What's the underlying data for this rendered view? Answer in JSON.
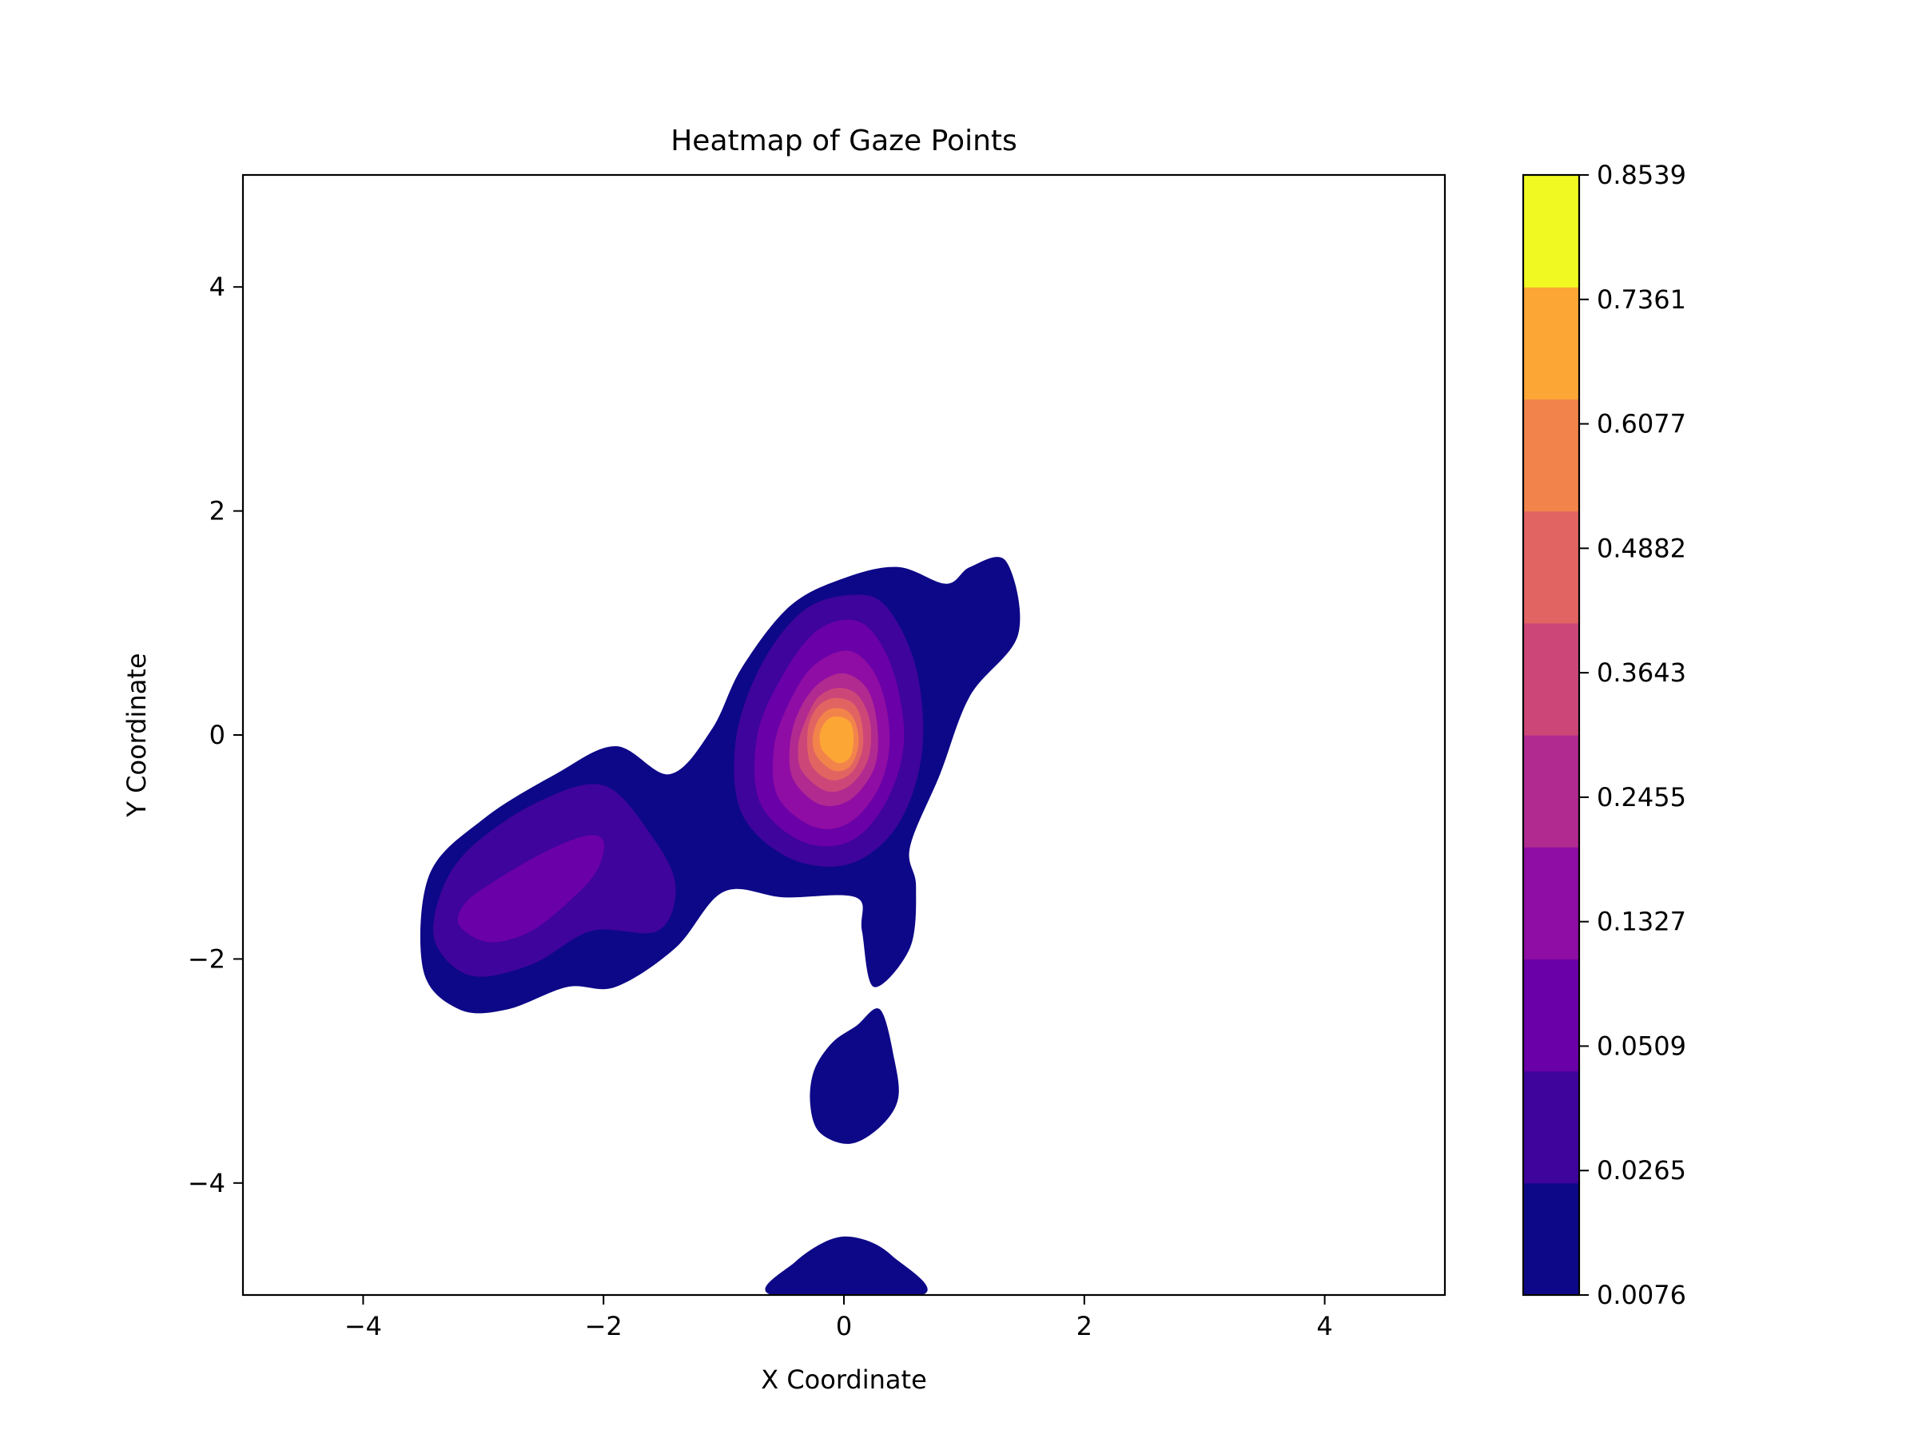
{
  "chart_data": {
    "type": "contour",
    "title": "Heatmap of Gaze Points",
    "xlabel": "X Coordinate",
    "ylabel": "Y Coordinate",
    "xlim": [
      -5,
      5
    ],
    "ylim": [
      -5,
      5
    ],
    "x_ticks": [
      -4,
      -2,
      0,
      2,
      4
    ],
    "y_ticks": [
      -4,
      -2,
      0,
      2,
      4
    ],
    "x_tick_labels": [
      "−4",
      "−2",
      "0",
      "2",
      "4"
    ],
    "y_tick_labels": [
      "−4",
      "−2",
      "0",
      "2",
      "4"
    ],
    "grid": false,
    "colormap": "plasma",
    "colorbar": {
      "levels": [
        0.0076,
        0.0265,
        0.0509,
        0.1327,
        0.2455,
        0.3643,
        0.4882,
        0.6077,
        0.7361,
        0.8539
      ],
      "labels": [
        "0.0076",
        "0.0265",
        "0.0509",
        "0.1327",
        "0.2455",
        "0.3643",
        "0.4882",
        "0.6077",
        "0.7361",
        "0.8539"
      ],
      "colors": [
        "#0d0887",
        "#3e049c",
        "#6a00a8",
        "#8f0da4",
        "#b12a90",
        "#cc4778",
        "#e16462",
        "#f2844b",
        "#fca636",
        "#f0f921"
      ]
    },
    "regions": [
      {
        "name": "main-blob",
        "level_index": 0,
        "outline": [
          [
            -3.5,
            -2.1
          ],
          [
            -3.2,
            -2.45
          ],
          [
            -2.8,
            -2.45
          ],
          [
            -2.3,
            -2.25
          ],
          [
            -1.9,
            -2.25
          ],
          [
            -1.4,
            -1.9
          ],
          [
            -1.0,
            -1.4
          ],
          [
            -0.5,
            -1.45
          ],
          [
            0.1,
            -1.45
          ],
          [
            0.15,
            -1.75
          ],
          [
            0.25,
            -2.25
          ],
          [
            0.55,
            -1.9
          ],
          [
            0.6,
            -1.35
          ],
          [
            0.55,
            -1.0
          ],
          [
            0.8,
            -0.35
          ],
          [
            1.05,
            0.35
          ],
          [
            1.45,
            0.9
          ],
          [
            1.35,
            1.55
          ],
          [
            1.05,
            1.5
          ],
          [
            0.85,
            1.35
          ],
          [
            0.45,
            1.5
          ],
          [
            0.0,
            1.4
          ],
          [
            -0.45,
            1.15
          ],
          [
            -0.85,
            0.6
          ],
          [
            -1.1,
            0.05
          ],
          [
            -1.45,
            -0.35
          ],
          [
            -1.9,
            -0.1
          ],
          [
            -2.4,
            -0.35
          ],
          [
            -3.0,
            -0.75
          ],
          [
            -3.45,
            -1.25
          ]
        ]
      },
      {
        "name": "upper-lobe-contour-1",
        "level_index": 1,
        "outline": [
          [
            -0.85,
            -0.7
          ],
          [
            -0.45,
            -1.1
          ],
          [
            0.05,
            -1.15
          ],
          [
            0.45,
            -0.8
          ],
          [
            0.65,
            -0.15
          ],
          [
            0.6,
            0.6
          ],
          [
            0.35,
            1.15
          ],
          [
            0.05,
            1.25
          ],
          [
            -0.35,
            1.1
          ],
          [
            -0.7,
            0.6
          ],
          [
            -0.9,
            -0.05
          ]
        ]
      },
      {
        "name": "upper-lobe-contour-2",
        "level_index": 2,
        "outline": [
          [
            -0.7,
            -0.6
          ],
          [
            -0.35,
            -0.95
          ],
          [
            0.05,
            -0.95
          ],
          [
            0.35,
            -0.6
          ],
          [
            0.5,
            -0.05
          ],
          [
            0.4,
            0.6
          ],
          [
            0.15,
            1.0
          ],
          [
            -0.2,
            0.95
          ],
          [
            -0.5,
            0.55
          ],
          [
            -0.72,
            0.0
          ]
        ]
      },
      {
        "name": "upper-lobe-contour-3",
        "level_index": 3,
        "outline": [
          [
            -0.55,
            -0.55
          ],
          [
            -0.25,
            -0.82
          ],
          [
            0.05,
            -0.78
          ],
          [
            0.3,
            -0.45
          ],
          [
            0.38,
            0.0
          ],
          [
            0.28,
            0.5
          ],
          [
            0.05,
            0.75
          ],
          [
            -0.25,
            0.62
          ],
          [
            -0.45,
            0.3
          ],
          [
            -0.58,
            -0.1
          ]
        ]
      },
      {
        "name": "upper-lobe-contour-4",
        "level_index": 4,
        "outline": [
          [
            -0.42,
            -0.4
          ],
          [
            -0.2,
            -0.62
          ],
          [
            0.05,
            -0.58
          ],
          [
            0.25,
            -0.3
          ],
          [
            0.28,
            0.05
          ],
          [
            0.2,
            0.4
          ],
          [
            0.0,
            0.55
          ],
          [
            -0.22,
            0.45
          ],
          [
            -0.38,
            0.2
          ],
          [
            -0.45,
            -0.1
          ]
        ]
      },
      {
        "name": "upper-lobe-contour-5",
        "level_index": 5,
        "outline": [
          [
            -0.35,
            -0.32
          ],
          [
            -0.15,
            -0.5
          ],
          [
            0.05,
            -0.45
          ],
          [
            0.2,
            -0.22
          ],
          [
            0.22,
            0.1
          ],
          [
            0.12,
            0.35
          ],
          [
            -0.05,
            0.42
          ],
          [
            -0.22,
            0.33
          ],
          [
            -0.33,
            0.1
          ],
          [
            -0.38,
            -0.1
          ]
        ]
      },
      {
        "name": "upper-lobe-contour-6",
        "level_index": 6,
        "outline": [
          [
            -0.28,
            -0.25
          ],
          [
            -0.12,
            -0.4
          ],
          [
            0.05,
            -0.35
          ],
          [
            0.15,
            -0.15
          ],
          [
            0.15,
            0.1
          ],
          [
            0.08,
            0.28
          ],
          [
            -0.08,
            0.33
          ],
          [
            -0.22,
            0.25
          ],
          [
            -0.3,
            0.05
          ]
        ]
      },
      {
        "name": "upper-lobe-contour-7",
        "level_index": 7,
        "outline": [
          [
            -0.22,
            -0.2
          ],
          [
            -0.08,
            -0.32
          ],
          [
            0.05,
            -0.28
          ],
          [
            0.12,
            -0.1
          ],
          [
            0.1,
            0.1
          ],
          [
            0.02,
            0.22
          ],
          [
            -0.12,
            0.23
          ],
          [
            -0.22,
            0.12
          ],
          [
            -0.26,
            -0.05
          ]
        ]
      },
      {
        "name": "upper-lobe-contour-8",
        "level_index": 8,
        "outline": [
          [
            -0.17,
            -0.15
          ],
          [
            -0.05,
            -0.25
          ],
          [
            0.05,
            -0.2
          ],
          [
            0.08,
            -0.05
          ],
          [
            0.06,
            0.1
          ],
          [
            -0.02,
            0.16
          ],
          [
            -0.12,
            0.15
          ],
          [
            -0.19,
            0.05
          ],
          [
            -0.2,
            -0.06
          ]
        ]
      },
      {
        "name": "lower-left-contour-1",
        "level_index": 1,
        "outline": [
          [
            -3.4,
            -1.85
          ],
          [
            -3.1,
            -2.15
          ],
          [
            -2.6,
            -2.05
          ],
          [
            -2.1,
            -1.75
          ],
          [
            -1.55,
            -1.75
          ],
          [
            -1.4,
            -1.35
          ],
          [
            -1.6,
            -0.9
          ],
          [
            -2.0,
            -0.45
          ],
          [
            -2.55,
            -0.6
          ],
          [
            -3.1,
            -1.0
          ],
          [
            -3.35,
            -1.4
          ]
        ]
      },
      {
        "name": "lower-left-contour-2",
        "level_index": 2,
        "outline": [
          [
            -3.2,
            -1.7
          ],
          [
            -2.95,
            -1.85
          ],
          [
            -2.6,
            -1.75
          ],
          [
            -2.25,
            -1.45
          ],
          [
            -2.05,
            -1.2
          ],
          [
            -2.0,
            -0.95
          ],
          [
            -2.15,
            -0.9
          ],
          [
            -2.5,
            -1.05
          ],
          [
            -2.9,
            -1.3
          ],
          [
            -3.15,
            -1.5
          ]
        ]
      },
      {
        "name": "lower-blob",
        "level_index": 0,
        "outline": [
          [
            -0.28,
            -3.3
          ],
          [
            -0.2,
            -3.55
          ],
          [
            0.05,
            -3.65
          ],
          [
            0.3,
            -3.5
          ],
          [
            0.45,
            -3.25
          ],
          [
            0.42,
            -2.9
          ],
          [
            0.3,
            -2.45
          ],
          [
            0.1,
            -2.6
          ],
          [
            -0.1,
            -2.75
          ],
          [
            -0.25,
            -3.0
          ]
        ]
      },
      {
        "name": "bottom-blob",
        "level_index": 0,
        "outline": [
          [
            -0.6,
            -5.0
          ],
          [
            -0.4,
            -4.7
          ],
          [
            -0.1,
            -4.5
          ],
          [
            0.15,
            -4.5
          ],
          [
            0.4,
            -4.65
          ],
          [
            0.65,
            -5.0
          ]
        ]
      }
    ]
  }
}
